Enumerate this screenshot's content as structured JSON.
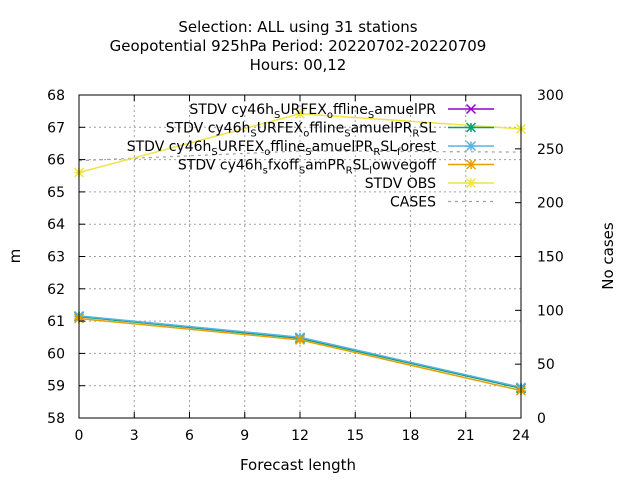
{
  "chart_data": {
    "type": "line",
    "title_lines": [
      "Selection: ALL using    31 stations",
      "Geopotential 925hPa   Period: 20220702-20220709",
      "Hours:  00,12"
    ],
    "xlabel": "Forecast length",
    "ylabel": "m",
    "y2label": "No cases",
    "x_ticks": [
      0,
      3,
      6,
      9,
      12,
      15,
      18,
      21,
      24
    ],
    "y_ticks": [
      58,
      59,
      60,
      61,
      62,
      63,
      64,
      65,
      66,
      67,
      68
    ],
    "y2_ticks": [
      0,
      50,
      100,
      150,
      200,
      250,
      300
    ],
    "xlim": [
      0,
      24
    ],
    "ylim": [
      58,
      68
    ],
    "y2lim": [
      0,
      300
    ],
    "grid": true,
    "legend_position": "top-right",
    "series": [
      {
        "name_parts": [
          [
            "STDV cy46h",
            ""
          ],
          [
            "S",
            "sub"
          ],
          [
            "URFEX",
            ""
          ],
          [
            "o",
            "sub"
          ],
          [
            "ffline",
            ""
          ],
          [
            "S",
            "sub"
          ],
          [
            "amuelPR",
            ""
          ]
        ],
        "color": "#9400d3",
        "marker": "x",
        "x": [
          0,
          12,
          24
        ],
        "values": [
          61.15,
          60.48,
          58.93
        ]
      },
      {
        "name_parts": [
          [
            "STDV cy46h",
            ""
          ],
          [
            "S",
            "sub"
          ],
          [
            "URFEX",
            ""
          ],
          [
            "o",
            "sub"
          ],
          [
            "ffline",
            ""
          ],
          [
            "S",
            "sub"
          ],
          [
            "amuelPR",
            ""
          ],
          [
            "R",
            "sub"
          ],
          [
            "SL",
            ""
          ]
        ],
        "color": "#009e73",
        "marker": "star",
        "x": [
          0,
          12,
          24
        ],
        "values": [
          61.14,
          60.47,
          58.92
        ]
      },
      {
        "name_parts": [
          [
            "STDV cy46h",
            ""
          ],
          [
            "S",
            "sub"
          ],
          [
            "URFEX",
            ""
          ],
          [
            "o",
            "sub"
          ],
          [
            "ffline",
            ""
          ],
          [
            "S",
            "sub"
          ],
          [
            "amuelPR",
            ""
          ],
          [
            "R",
            "sub"
          ],
          [
            "SL",
            ""
          ],
          [
            "f",
            "sub"
          ],
          [
            "orest",
            ""
          ]
        ],
        "color": "#56b4e9",
        "marker": "star",
        "x": [
          0,
          12,
          24
        ],
        "values": [
          61.16,
          60.5,
          58.95
        ]
      },
      {
        "name_parts": [
          [
            "STDV cy46h",
            ""
          ],
          [
            "s",
            "sub"
          ],
          [
            "fxoff",
            ""
          ],
          [
            "S",
            "sub"
          ],
          [
            "amPR",
            ""
          ],
          [
            "R",
            "sub"
          ],
          [
            "SL",
            ""
          ],
          [
            "l",
            "sub"
          ],
          [
            "owvegoff",
            ""
          ]
        ],
        "color": "#e69f00",
        "marker": "star",
        "x": [
          0,
          12,
          24
        ],
        "values": [
          61.08,
          60.42,
          58.85
        ]
      },
      {
        "name_parts": [
          [
            "STDV OBS",
            ""
          ]
        ],
        "color": "#f0e442",
        "marker": "star",
        "x": [
          0,
          12,
          24
        ],
        "values": [
          65.6,
          67.42,
          66.95
        ]
      }
    ],
    "cases": {
      "name": "CASES",
      "color": "#a0a0a0",
      "axis": "y2",
      "x": [
        0,
        12,
        24
      ],
      "values": [
        239,
        248,
        247
      ]
    }
  }
}
